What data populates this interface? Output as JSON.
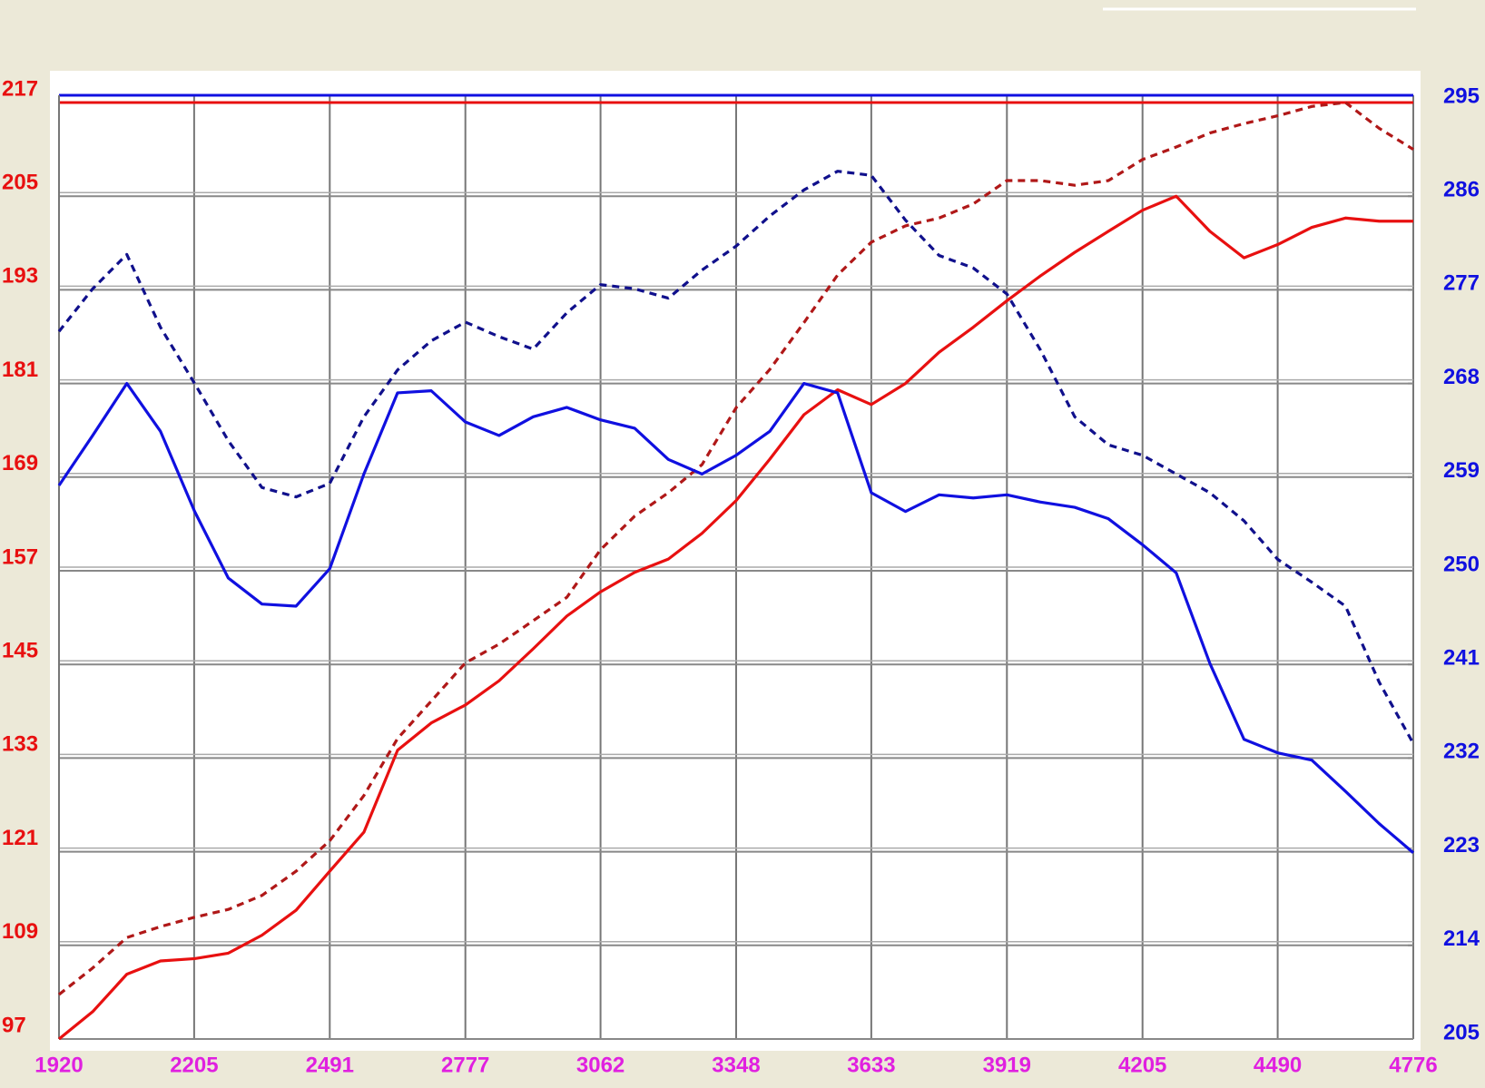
{
  "chart_data": {
    "type": "line",
    "x": [
      1920,
      1991,
      2063,
      2134,
      2206,
      2277,
      2348,
      2420,
      2491,
      2563,
      2634,
      2705,
      2777,
      2848,
      2920,
      2991,
      3062,
      3134,
      3205,
      3276,
      3348,
      3419,
      3491,
      3562,
      3633,
      3705,
      3776,
      3848,
      3919,
      3990,
      4062,
      4133,
      4205,
      4276,
      4347,
      4419,
      4490,
      4562,
      4633,
      4704,
      4776
    ],
    "xlim": [
      1920,
      4776
    ],
    "xticks": [
      1920,
      2205,
      2491,
      2777,
      3062,
      3348,
      3633,
      3919,
      4205,
      4490,
      4776
    ],
    "ylim": [
      97,
      217
    ],
    "yticks": [
      97,
      109,
      121,
      133,
      145,
      157,
      169,
      181,
      193,
      205,
      217
    ],
    "y2lim": [
      205,
      295
    ],
    "y2ticks": [
      205,
      214,
      223,
      232,
      241,
      250,
      259,
      268,
      277,
      286,
      295
    ],
    "grid": true,
    "series": [
      {
        "color": "#e81010",
        "style": "solid",
        "values": [
          97,
          100.5,
          105.3,
          107,
          107.3,
          108,
          110.3,
          113.5,
          118.5,
          123.5,
          134,
          137.5,
          139.8,
          142.9,
          147,
          151.2,
          154.3,
          156.8,
          158.5,
          161.8,
          166,
          171.3,
          177,
          180.2,
          178.3,
          181,
          185,
          188.2,
          191.6,
          194.8,
          197.8,
          200.5,
          203.2,
          205,
          200.5,
          197.1,
          198.8,
          201,
          202.2,
          201.8,
          201.8
        ]
      },
      {
        "color": "#b01818",
        "style": "dashed",
        "values": [
          102.7,
          106.1,
          110,
          111.4,
          112.6,
          113.6,
          115.4,
          118.5,
          122.4,
          128.2,
          135.5,
          140.3,
          145.2,
          147.6,
          150.6,
          153.6,
          159.7,
          164,
          167,
          170.6,
          177.9,
          182.8,
          188.8,
          194.9,
          199.1,
          201.2,
          202.2,
          204,
          207,
          207,
          206.4,
          207,
          209.7,
          211.3,
          213.1,
          214.3,
          215.3,
          216.5,
          217,
          213.7,
          211
        ]
      },
      {
        "color": "#1010e0",
        "style": "solid",
        "axis": "y2",
        "values": [
          258.2,
          263,
          268,
          263.4,
          255.7,
          249.3,
          246.8,
          246.6,
          250.2,
          259.3,
          267.1,
          267.3,
          264.3,
          263,
          264.8,
          265.7,
          264.5,
          263.7,
          260.7,
          259.3,
          261.1,
          263.4,
          268,
          267.1,
          257.5,
          255.7,
          257.3,
          257,
          257.3,
          256.6,
          256.1,
          255,
          252.5,
          249.8,
          241.1,
          233.8,
          232.5,
          231.8,
          228.8,
          225.7,
          222.9
        ]
      },
      {
        "color": "#10108c",
        "style": "dashed",
        "axis": "y2",
        "values": [
          273,
          277.1,
          280.4,
          273.4,
          268,
          262.5,
          258,
          257.1,
          258.4,
          264.8,
          269.3,
          272.1,
          273.9,
          272.5,
          271.3,
          274.8,
          277.5,
          277.1,
          276.2,
          278.9,
          281.2,
          284.1,
          286.6,
          288.4,
          288,
          283.7,
          280.3,
          279.1,
          276.6,
          271.2,
          264.8,
          262.1,
          261.1,
          259.3,
          257.5,
          254.8,
          251.1,
          248.9,
          246.6,
          239.3,
          233.4
        ]
      }
    ]
  }
}
